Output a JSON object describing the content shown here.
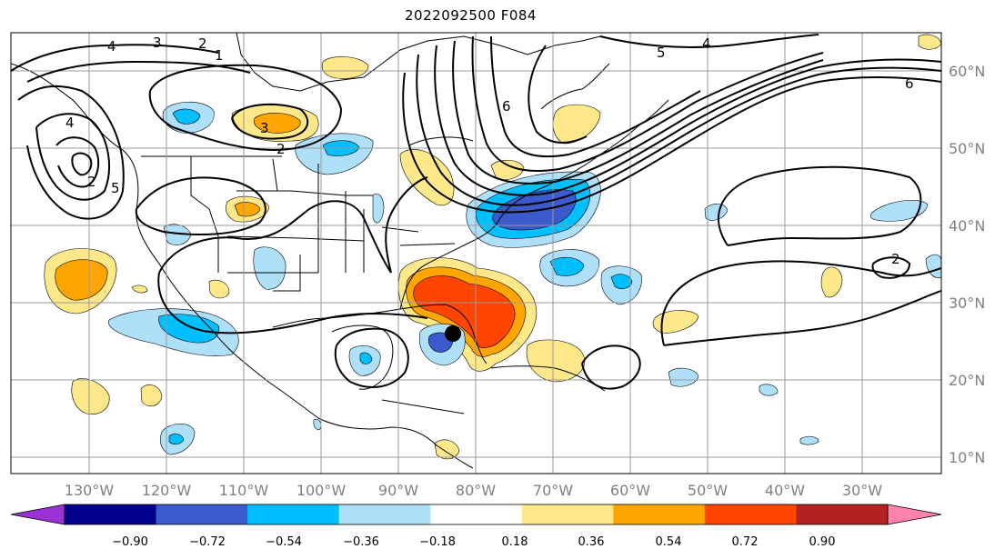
{
  "title": "2022092500 F084",
  "longitude_labels": [
    "130°W",
    "120°W",
    "110°W",
    "100°W",
    "90°W",
    "80°W",
    "70°W",
    "60°W",
    "50°W",
    "40°W",
    "30°W"
  ],
  "latitude_labels": [
    "60°N",
    "50°N",
    "40°N",
    "30°N",
    "20°N",
    "10°N"
  ],
  "colorbar": {
    "ticks": [
      "−0.90",
      "−0.72",
      "−0.54",
      "−0.36",
      "−0.18",
      "0.18",
      "0.36",
      "0.54",
      "0.72",
      "0.90"
    ],
    "colors": [
      "#9b32d6",
      "#00008b",
      "#3b5bcc",
      "#00bfff",
      "#aee0fa",
      "#ffffff",
      "#ffe88a",
      "#ffa500",
      "#ff4500",
      "#b22222",
      "#ff82ab"
    ]
  },
  "contour_labels": [
    "4",
    "3",
    "2",
    "1",
    "2",
    "3",
    "2",
    "5",
    "4",
    "6",
    "6",
    "5",
    "4",
    "2"
  ],
  "colors": {
    "gridline": "#9a9a9a",
    "coastline": "#000000",
    "contour": "#000000",
    "marker": "#000000"
  }
}
